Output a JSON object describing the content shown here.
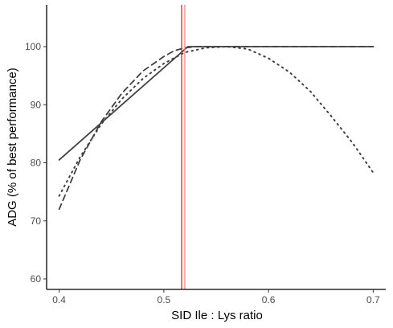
{
  "chart_data": {
    "type": "line",
    "title": "",
    "xlabel": "SID Ile : Lys ratio",
    "ylabel": "ADG (% of best performance)",
    "xlim": [
      0.388,
      0.712
    ],
    "ylim": [
      58.2,
      107.2
    ],
    "x_ticks": [
      0.4,
      0.5,
      0.6,
      0.7
    ],
    "x_tick_labels": [
      "0.4",
      "0.5",
      "0.6",
      "0.7"
    ],
    "y_ticks": [
      60,
      70,
      80,
      90,
      100
    ],
    "y_tick_labels": [
      "60",
      "70",
      "80",
      "90",
      "100"
    ],
    "grid": false,
    "legend": "none",
    "series": [
      {
        "style": "solid",
        "color": "#404040",
        "x": [
          0.4,
          0.523,
          0.7
        ],
        "y": [
          80.5,
          100.0,
          100.0
        ]
      },
      {
        "style": "dashed",
        "color": "#404040",
        "x": [
          0.4,
          0.42,
          0.44,
          0.46,
          0.48,
          0.5,
          0.51,
          0.52,
          0.53,
          0.56,
          0.6,
          0.65,
          0.7
        ],
        "y": [
          72.0,
          80.5,
          87.0,
          92.0,
          95.8,
          98.3,
          99.3,
          99.8,
          100.0,
          100.0,
          100.0,
          100.0,
          100.0
        ]
      },
      {
        "style": "dotted",
        "color": "#404040",
        "x": [
          0.4,
          0.42,
          0.44,
          0.46,
          0.48,
          0.5,
          0.52,
          0.54,
          0.56,
          0.58,
          0.6,
          0.62,
          0.64,
          0.66,
          0.68,
          0.7
        ],
        "y": [
          74.3,
          81.0,
          86.6,
          91.0,
          94.5,
          97.1,
          99.0,
          99.8,
          100.0,
          99.6,
          98.0,
          95.6,
          92.3,
          88.0,
          83.5,
          78.3
        ]
      }
    ],
    "reference_lines": [
      {
        "x": 0.517,
        "color": "#e8201c"
      },
      {
        "x": 0.52,
        "color": "#f08a86"
      }
    ]
  }
}
